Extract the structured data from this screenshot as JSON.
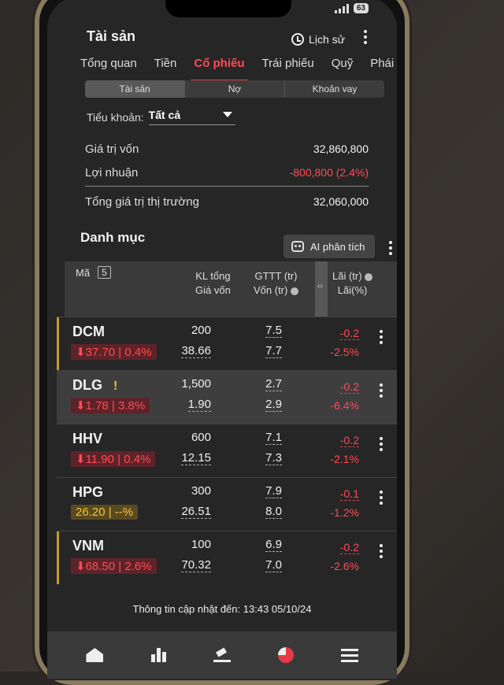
{
  "header": {
    "title": "Tài sản",
    "history_label": "Lịch sử"
  },
  "status": {
    "battery": "63"
  },
  "tabs": [
    {
      "label": "Tổng quan",
      "active": false
    },
    {
      "label": "Tiền",
      "active": false
    },
    {
      "label": "Cổ phiếu",
      "active": true
    },
    {
      "label": "Trái phiếu",
      "active": false
    },
    {
      "label": "Quỹ",
      "active": false
    },
    {
      "label": "Phái",
      "active": false
    }
  ],
  "segment": [
    "Tài sản",
    "Nợ",
    "Khoản vay"
  ],
  "account": {
    "label": "Tiểu khoản:",
    "value": "Tất cả"
  },
  "summary": {
    "capital_label": "Giá trị vốn",
    "capital_value": "32,860,800",
    "profit_label": "Lợi nhuận",
    "profit_value": "-800,800 (2.4%)",
    "market_label": "Tổng giá trị thị trường",
    "market_value": "32,060,000"
  },
  "portfolio": {
    "title": "Danh mục",
    "ai_label": "AI phân tích",
    "count": "5",
    "col_symbol": "Mã",
    "col_qty": "KL tổng",
    "col_cost_price": "Giá vốn",
    "col_market": "GTTT (tr)",
    "col_capital": "Vốn (tr)",
    "col_profit": "Lãi (tr)",
    "col_profit_pct": "Lãi(%)"
  },
  "rows": [
    {
      "symbol": "DCM",
      "chip": "⬇37.70 | 0.4%",
      "chip_color": "red",
      "warn": "",
      "qty": "200",
      "cost": "38.66",
      "market": "7.5",
      "capital": "7.7",
      "profit": "-0.2",
      "profit_pct": "-2.5%"
    },
    {
      "symbol": "DLG",
      "chip": "⬇1.78 | 3.8%",
      "chip_color": "red",
      "warn": "!",
      "qty": "1,500",
      "cost": "1.90",
      "market": "2.7",
      "capital": "2.9",
      "profit": "-0.2",
      "profit_pct": "-6.4%"
    },
    {
      "symbol": "HHV",
      "chip": "⬇11.90 | 0.4%",
      "chip_color": "red",
      "warn": "",
      "qty": "600",
      "cost": "12.15",
      "market": "7.1",
      "capital": "7.3",
      "profit": "-0.2",
      "profit_pct": "-2.1%"
    },
    {
      "symbol": "HPG",
      "chip": "26.20 | --%",
      "chip_color": "yellow",
      "warn": "",
      "qty": "300",
      "cost": "26.51",
      "market": "7.9",
      "capital": "8.0",
      "profit": "-0.1",
      "profit_pct": "-1.2%"
    },
    {
      "symbol": "VNM",
      "chip": "⬇68.50 | 2.6%",
      "chip_color": "red",
      "warn": "",
      "qty": "100",
      "cost": "70.32",
      "market": "6.9",
      "capital": "7.0",
      "profit": "-0.2",
      "profit_pct": "-2.6%"
    }
  ],
  "footer_note": "Thông tin cập nhật đến: 13:43 05/10/24",
  "nav": [
    "home-icon",
    "market-icon",
    "trade-icon",
    "portfolio-icon",
    "menu-icon"
  ],
  "colors": {
    "accent": "#e03d49",
    "negative": "#ff4a55",
    "warning": "#f2c233"
  }
}
